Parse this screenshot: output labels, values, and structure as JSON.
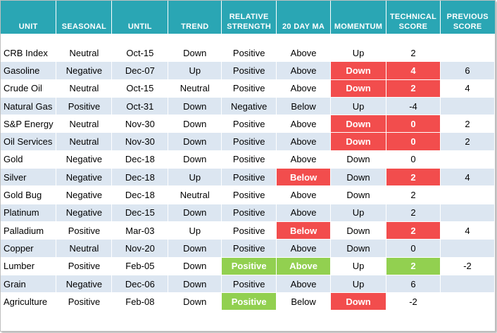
{
  "headers": {
    "unit": "UNIT",
    "seasonal": "SEASONAL",
    "until": "UNTIL",
    "trend": "TREND",
    "rs_line1": "RELATIVE",
    "rs_line2": "STRENGTH",
    "ma": "20 DAY MA",
    "momentum": "MOMENTUM",
    "tech_line1": "TECHNICAL",
    "tech_line2": "SCORE",
    "prev_line1": "PREVIOUS",
    "prev_line2": "SCORE"
  },
  "colors": {
    "header": "#2aa6b4",
    "band": "#dce6f1",
    "red": "#f24d4d",
    "green": "#92d050"
  },
  "rows": [
    {
      "unit": "CRB Index",
      "seasonal": "Neutral",
      "until": "Oct-15",
      "trend": "Down",
      "rs": "Positive",
      "ma": "Above",
      "momentum": "Up",
      "score": "2",
      "prev": "",
      "rs_hl": "",
      "ma_hl": "",
      "mom_hl": "",
      "score_hl": ""
    },
    {
      "unit": "Gasoline",
      "seasonal": "Negative",
      "until": "Dec-07",
      "trend": "Up",
      "rs": "Positive",
      "ma": "Above",
      "momentum": "Down",
      "score": "4",
      "prev": "6",
      "rs_hl": "",
      "ma_hl": "",
      "mom_hl": "red",
      "score_hl": "red"
    },
    {
      "unit": "Crude Oil",
      "seasonal": "Neutral",
      "until": "Oct-15",
      "trend": "Neutral",
      "rs": "Positive",
      "ma": "Above",
      "momentum": "Down",
      "score": "2",
      "prev": "4",
      "rs_hl": "",
      "ma_hl": "",
      "mom_hl": "red",
      "score_hl": "red"
    },
    {
      "unit": "Natural Gas",
      "seasonal": "Positive",
      "until": "Oct-31",
      "trend": "Down",
      "rs": "Negative",
      "ma": "Below",
      "momentum": "Up",
      "score": "-4",
      "prev": "",
      "rs_hl": "",
      "ma_hl": "",
      "mom_hl": "",
      "score_hl": ""
    },
    {
      "unit": "S&P Energy",
      "seasonal": "Neutral",
      "until": "Nov-30",
      "trend": "Down",
      "rs": "Positive",
      "ma": "Above",
      "momentum": "Down",
      "score": "0",
      "prev": "2",
      "rs_hl": "",
      "ma_hl": "",
      "mom_hl": "red",
      "score_hl": "red"
    },
    {
      "unit": "Oil Services",
      "seasonal": "Neutral",
      "until": "Nov-30",
      "trend": "Down",
      "rs": "Positive",
      "ma": "Above",
      "momentum": "Down",
      "score": "0",
      "prev": "2",
      "rs_hl": "",
      "ma_hl": "",
      "mom_hl": "red",
      "score_hl": "red"
    },
    {
      "unit": "Gold",
      "seasonal": "Negative",
      "until": "Dec-18",
      "trend": "Down",
      "rs": "Positive",
      "ma": "Above",
      "momentum": "Down",
      "score": "0",
      "prev": "",
      "rs_hl": "",
      "ma_hl": "",
      "mom_hl": "",
      "score_hl": ""
    },
    {
      "unit": "Silver",
      "seasonal": "Negative",
      "until": "Dec-18",
      "trend": "Up",
      "rs": "Positive",
      "ma": "Below",
      "momentum": "Down",
      "score": "2",
      "prev": "4",
      "rs_hl": "",
      "ma_hl": "red",
      "mom_hl": "",
      "score_hl": "red"
    },
    {
      "unit": "Gold Bug",
      "seasonal": "Negative",
      "until": "Dec-18",
      "trend": "Neutral",
      "rs": "Positive",
      "ma": "Above",
      "momentum": "Down",
      "score": "2",
      "prev": "",
      "rs_hl": "",
      "ma_hl": "",
      "mom_hl": "",
      "score_hl": ""
    },
    {
      "unit": "Platinum",
      "seasonal": "Negative",
      "until": "Dec-15",
      "trend": "Down",
      "rs": "Positive",
      "ma": "Above",
      "momentum": "Up",
      "score": "2",
      "prev": "",
      "rs_hl": "",
      "ma_hl": "",
      "mom_hl": "",
      "score_hl": ""
    },
    {
      "unit": "Palladium",
      "seasonal": "Positive",
      "until": "Mar-03",
      "trend": "Up",
      "rs": "Positive",
      "ma": "Below",
      "momentum": "Down",
      "score": "2",
      "prev": "4",
      "rs_hl": "",
      "ma_hl": "red",
      "mom_hl": "",
      "score_hl": "red"
    },
    {
      "unit": "Copper",
      "seasonal": "Neutral",
      "until": "Nov-20",
      "trend": "Down",
      "rs": "Positive",
      "ma": "Above",
      "momentum": "Down",
      "score": "0",
      "prev": "",
      "rs_hl": "",
      "ma_hl": "",
      "mom_hl": "",
      "score_hl": ""
    },
    {
      "unit": "Lumber",
      "seasonal": "Positive",
      "until": "Feb-05",
      "trend": "Down",
      "rs": "Positive",
      "ma": "Above",
      "momentum": "Up",
      "score": "2",
      "prev": "-2",
      "rs_hl": "green",
      "ma_hl": "green",
      "mom_hl": "",
      "score_hl": "green"
    },
    {
      "unit": "Grain",
      "seasonal": "Negative",
      "until": "Dec-06",
      "trend": "Down",
      "rs": "Positive",
      "ma": "Above",
      "momentum": "Up",
      "score": "6",
      "prev": "",
      "rs_hl": "",
      "ma_hl": "",
      "mom_hl": "",
      "score_hl": ""
    },
    {
      "unit": "Agriculture",
      "seasonal": "Positive",
      "until": "Feb-08",
      "trend": "Down",
      "rs": "Positive",
      "ma": "Below",
      "momentum": "Down",
      "score": "-2",
      "prev": "",
      "rs_hl": "green",
      "ma_hl": "",
      "mom_hl": "red",
      "score_hl": ""
    }
  ]
}
